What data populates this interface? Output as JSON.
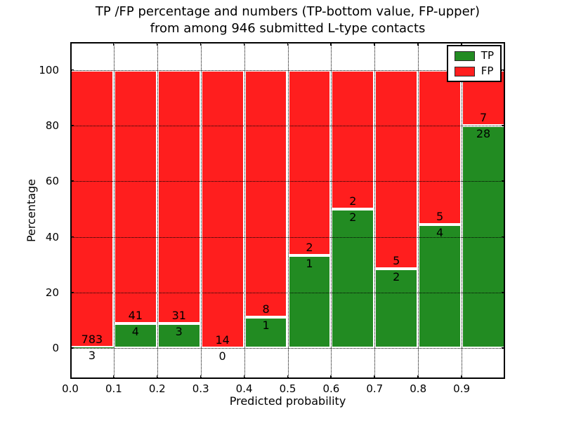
{
  "figure": {
    "title_line1": "TP /FP percentage and numbers (TP-bottom value, FP-upper)",
    "title_line2": "from among 946 submitted L-type contacts",
    "xlabel": "Predicted probability",
    "ylabel": "Percentage"
  },
  "legend": {
    "items": [
      {
        "label": "TP",
        "color": "#228B22"
      },
      {
        "label": "FP",
        "color": "#FF1E1E"
      }
    ]
  },
  "chart_data": {
    "type": "bar",
    "stacked": true,
    "normalized_to_percent": true,
    "title": "TP /FP percentage and numbers (TP-bottom value, FP-upper) from among 946 submitted L-type contacts",
    "xlabel": "Predicted probability",
    "ylabel": "Percentage",
    "total_submitted": 946,
    "bin_edges": [
      0.0,
      0.1,
      0.2,
      0.3,
      0.4,
      0.5,
      0.6,
      0.7,
      0.8,
      0.9,
      1.0
    ],
    "categories": [
      "0.0-0.1",
      "0.1-0.2",
      "0.2-0.3",
      "0.3-0.4",
      "0.4-0.5",
      "0.5-0.6",
      "0.6-0.7",
      "0.7-0.8",
      "0.8-0.9",
      "0.9-1.0"
    ],
    "series": [
      {
        "name": "TP",
        "color": "#228B22",
        "counts": [
          3,
          4,
          3,
          0,
          1,
          1,
          2,
          2,
          4,
          28
        ]
      },
      {
        "name": "FP",
        "color": "#FF1E1E",
        "counts": [
          783,
          41,
          31,
          14,
          8,
          2,
          2,
          5,
          5,
          7
        ]
      }
    ],
    "tp_percentage": [
      0.38,
      8.89,
      8.82,
      0.0,
      11.11,
      33.33,
      50.0,
      28.57,
      44.44,
      80.0
    ],
    "xticks": [
      "0.0",
      "0.1",
      "0.2",
      "0.3",
      "0.4",
      "0.5",
      "0.6",
      "0.7",
      "0.8",
      "0.9"
    ],
    "yticks": [
      "0",
      "20",
      "40",
      "60",
      "80",
      "100"
    ],
    "xlim": [
      0.0,
      1.0
    ],
    "ylim": [
      -11,
      110
    ],
    "grid": "dotted-black",
    "legend_position": "upper right"
  }
}
